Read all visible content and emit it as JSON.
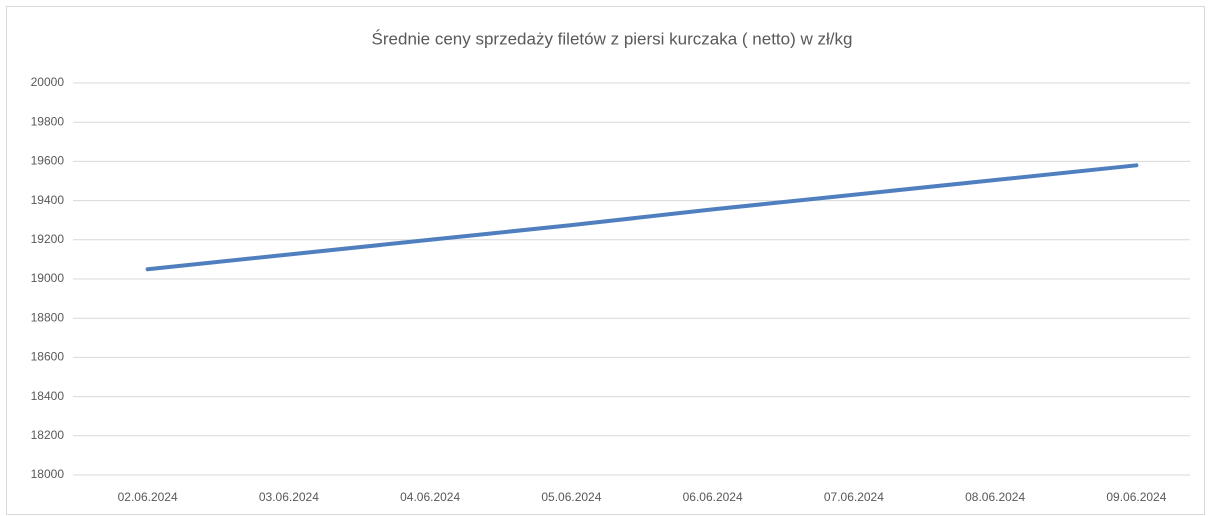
{
  "chart_data": {
    "type": "line",
    "title": "Średnie ceny sprzedaży filetów z piersi kurczaka ( netto) w zł/kg",
    "categories": [
      "02.06.2024",
      "03.06.2024",
      "04.06.2024",
      "05.06.2024",
      "06.06.2024",
      "07.06.2024",
      "08.06.2024",
      "09.06.2024"
    ],
    "series": [
      {
        "name": "Średnie ceny",
        "color": "#4f7fbf",
        "values": [
          19050,
          19125,
          19200,
          19275,
          19355,
          19430,
          19505,
          19580
        ]
      }
    ],
    "ylim": [
      18000,
      20000
    ],
    "yticks": [
      18000,
      18200,
      18400,
      18600,
      18800,
      19000,
      19200,
      19400,
      19600,
      19800,
      20000
    ],
    "grid": true
  }
}
